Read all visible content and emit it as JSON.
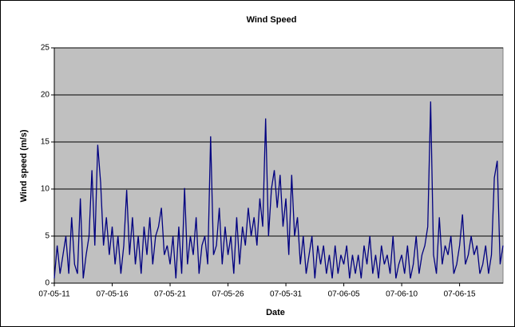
{
  "chart_data": {
    "type": "line",
    "title": "Wind Speed",
    "x_label": "Date",
    "y_label": "Wind speed (m/s)",
    "categories": [
      "07-05-11",
      null,
      null,
      null,
      null,
      null,
      null,
      null,
      null,
      null,
      null,
      null,
      null,
      null,
      null,
      null,
      null,
      null,
      null,
      null,
      "07-05-16",
      null,
      null,
      null,
      null,
      null,
      null,
      null,
      null,
      null,
      null,
      null,
      null,
      null,
      null,
      null,
      null,
      null,
      null,
      null,
      "07-05-21",
      null,
      null,
      null,
      null,
      null,
      null,
      null,
      null,
      null,
      null,
      null,
      null,
      null,
      null,
      null,
      null,
      null,
      null,
      null,
      "07-05-26",
      null,
      null,
      null,
      null,
      null,
      null,
      null,
      null,
      null,
      null,
      null,
      null,
      null,
      null,
      null,
      null,
      null,
      null,
      null,
      "07-05-31",
      null,
      null,
      null,
      null,
      null,
      null,
      null,
      null,
      null,
      null,
      null,
      null,
      null,
      null,
      null,
      null,
      null,
      null,
      null,
      "07-06-05",
      null,
      null,
      null,
      null,
      null,
      null,
      null,
      null,
      null,
      null,
      null,
      null,
      null,
      null,
      null,
      null,
      null,
      null,
      null,
      "07-06-10",
      null,
      null,
      null,
      null,
      null,
      null,
      null,
      null,
      null,
      null,
      null,
      null,
      null,
      null,
      null,
      null,
      null,
      null,
      null,
      "07-06-15",
      null,
      null,
      null,
      null,
      null,
      null,
      null,
      null,
      null,
      null,
      null,
      null,
      null,
      null,
      null
    ],
    "series": [
      {
        "name": "Wind speed",
        "color": "#000080",
        "values": [
          0.5,
          4,
          1,
          3,
          5,
          1,
          7,
          2,
          1,
          9,
          0.5,
          3,
          5,
          12,
          4,
          14.7,
          10.7,
          4,
          7,
          3,
          6,
          2,
          5,
          1,
          4,
          9.9,
          3,
          7,
          2,
          5,
          1,
          6,
          3,
          7,
          2,
          5,
          6,
          8,
          3,
          4,
          2,
          5,
          0.5,
          6,
          1,
          10.1,
          2,
          5,
          3,
          7,
          1,
          4,
          5,
          2,
          15.6,
          3,
          4,
          8,
          2,
          6,
          3,
          5,
          1,
          7,
          2,
          6,
          4,
          8,
          5,
          7,
          4,
          9,
          6,
          17.5,
          5,
          10,
          12,
          8,
          11.5,
          6,
          9,
          3,
          11.5,
          5,
          7,
          2,
          5,
          1,
          3,
          5,
          0.5,
          4,
          2,
          4,
          1,
          3,
          0.5,
          4,
          1,
          3,
          2,
          4,
          0.5,
          3,
          1,
          3,
          0.5,
          4,
          2,
          5,
          1,
          3,
          0.5,
          4,
          2,
          3,
          1,
          5,
          0.5,
          2,
          3,
          1,
          4,
          0.5,
          2,
          5,
          1,
          3,
          4,
          6,
          19.3,
          3,
          1,
          7,
          2,
          4,
          3,
          5,
          1,
          2,
          4,
          7.3,
          2,
          3,
          5,
          3,
          4,
          1,
          2,
          4,
          1,
          3,
          11.2,
          13,
          2,
          4
        ]
      }
    ],
    "ylim": [
      0,
      25
    ],
    "yticks": [
      0,
      5,
      10,
      15,
      20,
      25
    ],
    "grid": true
  }
}
